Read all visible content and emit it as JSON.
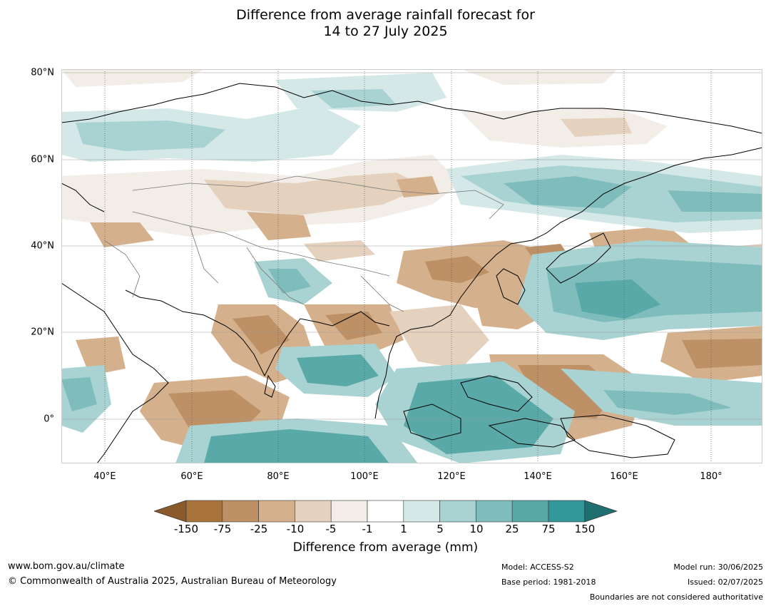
{
  "title_line1": "Difference from average rainfall forecast for",
  "title_line2": "14 to 27 July 2025",
  "map": {
    "lat_labels": [
      "80°N",
      "60°N",
      "40°N",
      "20°N",
      "0°"
    ],
    "lon_labels": [
      "40°E",
      "60°E",
      "80°E",
      "100°E",
      "120°E",
      "140°E",
      "160°E",
      "180°"
    ],
    "extent": {
      "lon_min": 30,
      "lon_max": 192,
      "lat_min": -10,
      "lat_max": 81
    }
  },
  "legend": {
    "title": "Difference from average (mm)",
    "ticks": [
      "-150",
      "-75",
      "-25",
      "-10",
      "-5",
      "-1",
      "1",
      "5",
      "10",
      "25",
      "75",
      "150"
    ],
    "colors": [
      "#8a5a2b",
      "#a8733d",
      "#be9065",
      "#d4b18c",
      "#e4d2bf",
      "#f2ede7",
      "#ffffff",
      "#d4e8e7",
      "#a9d3d2",
      "#7ebdbc",
      "#59a9a8",
      "#33979a",
      "#1f6f70"
    ]
  },
  "footer": {
    "website": "www.bom.gov.au/climate",
    "copyright": "© Commonwealth of Australia 2025, Australian Bureau of Meteorology",
    "model": "Model: ACCESS-S2",
    "base_period": "Base period: 1981-2018",
    "model_run": "Model run: 30/06/2025",
    "issued": "Issued: 02/07/2025",
    "disclaimer": "Boundaries are not considered authoritative"
  }
}
